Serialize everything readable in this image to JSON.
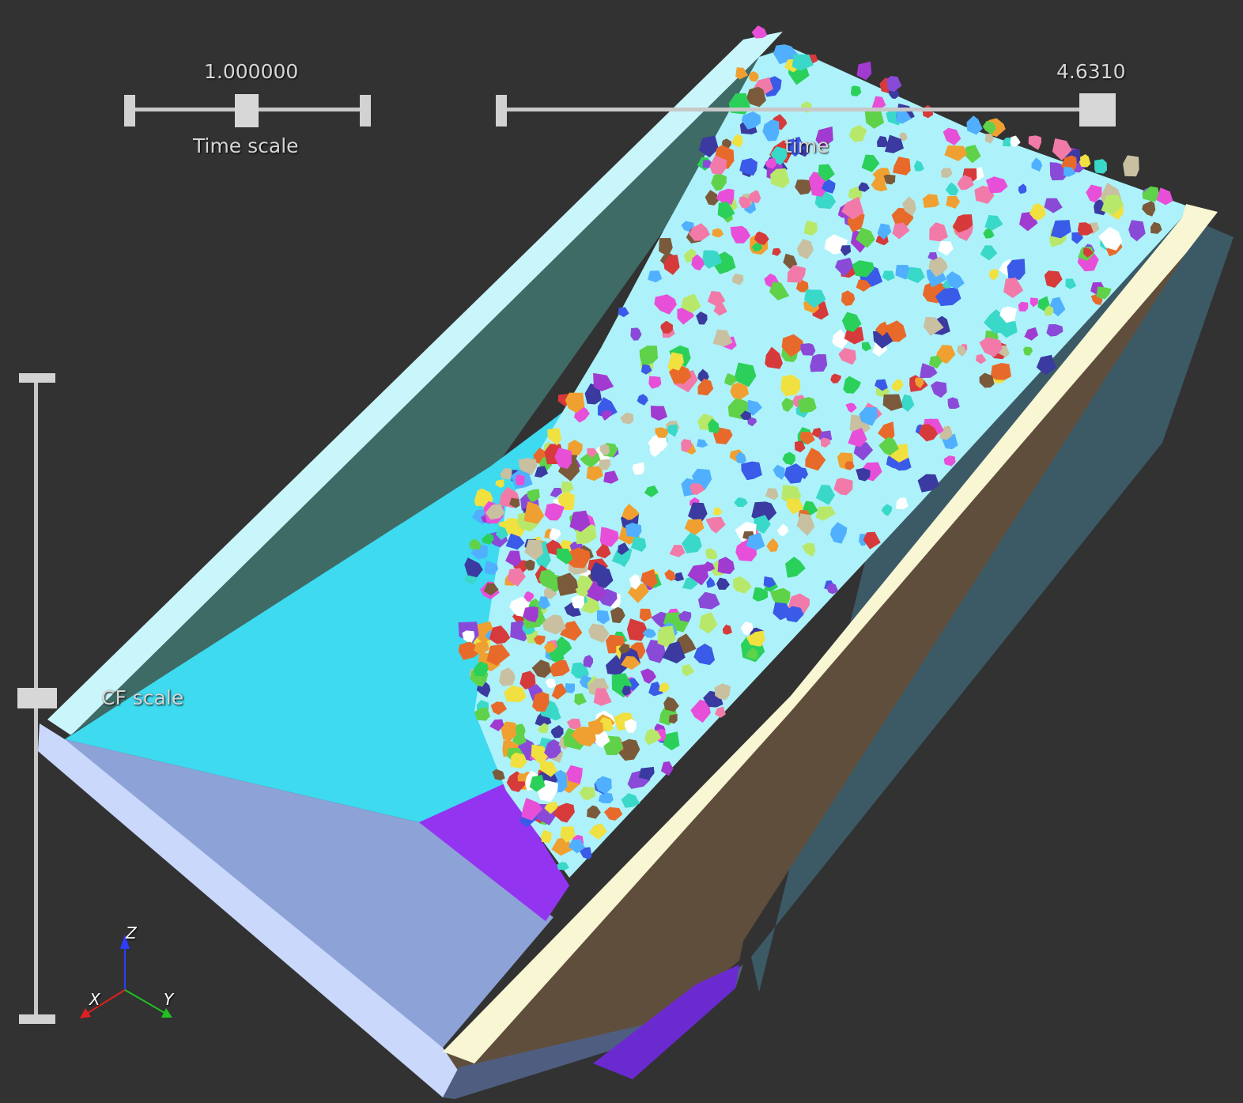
{
  "sliders": {
    "time_scale": {
      "value_label": "1.000000",
      "title": "Time scale",
      "position": 0.5
    },
    "time": {
      "value_label": "4.6310",
      "title": "time",
      "position": 1.0
    },
    "cf_scale": {
      "title": "CF scale",
      "position": 0.5
    }
  },
  "axes": {
    "x": "X",
    "y": "Y",
    "z": "Z"
  },
  "colors": {
    "background": "#323232",
    "chute_inner_wall": "#3e6b66",
    "chute_floor": "#3ddaf0",
    "chute_bottom": "#8da2d6",
    "chute_rim": "#c9d8fb",
    "chute_side_top": "#f9f6d3",
    "chute_side_outer": "#5f4e3c",
    "bed_surface": "#adf2fa",
    "outlet": "#9334f0"
  }
}
